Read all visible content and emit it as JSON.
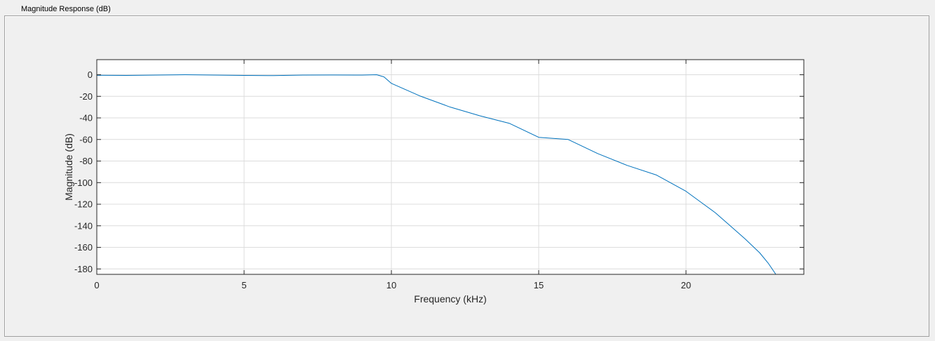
{
  "panel": {
    "title": "Magnitude Response (dB)"
  },
  "chart_data": {
    "type": "line",
    "title": "",
    "xlabel": "Frequency (kHz)",
    "ylabel": "Magnitude (dB)",
    "xlim": [
      0,
      24
    ],
    "ylim": [
      -185,
      14
    ],
    "grid": true,
    "x_ticks": [
      0,
      5,
      10,
      15,
      20
    ],
    "y_ticks": [
      0,
      -20,
      -40,
      -60,
      -80,
      -100,
      -120,
      -140,
      -160,
      -180
    ],
    "x_tick_labels": [
      "0",
      "5",
      "10",
      "15",
      "20"
    ],
    "y_tick_labels": [
      "0",
      "-20",
      "-40",
      "-60",
      "-80",
      "-100",
      "-120",
      "-140",
      "-160",
      "-180"
    ],
    "series": [
      {
        "color": "#0072bd",
        "x": [
          0,
          1,
          2,
          3,
          4,
          5,
          6,
          7,
          8,
          9,
          9.5,
          9.75,
          10,
          10.5,
          11,
          12,
          13,
          14,
          15,
          16,
          17,
          18,
          19,
          20,
          20.5,
          21,
          21.5,
          22,
          22.5,
          22.8,
          23.05
        ],
        "y": [
          -0.5,
          -0.6,
          -0.3,
          0,
          -0.3,
          -0.6,
          -0.8,
          -0.3,
          -0.2,
          -0.3,
          0,
          -2,
          -8,
          -14,
          -20,
          -30,
          -38,
          -45,
          -58,
          -60,
          -73,
          -84,
          -93,
          -108,
          -118,
          -128,
          -140,
          -152,
          -165,
          -175,
          -185
        ]
      }
    ]
  },
  "colors": {
    "line": "#0072bd",
    "grid": "#dcdcdc",
    "axes": "#262626",
    "panel_bg": "#f0f0f0",
    "plot_bg": "#ffffff"
  }
}
